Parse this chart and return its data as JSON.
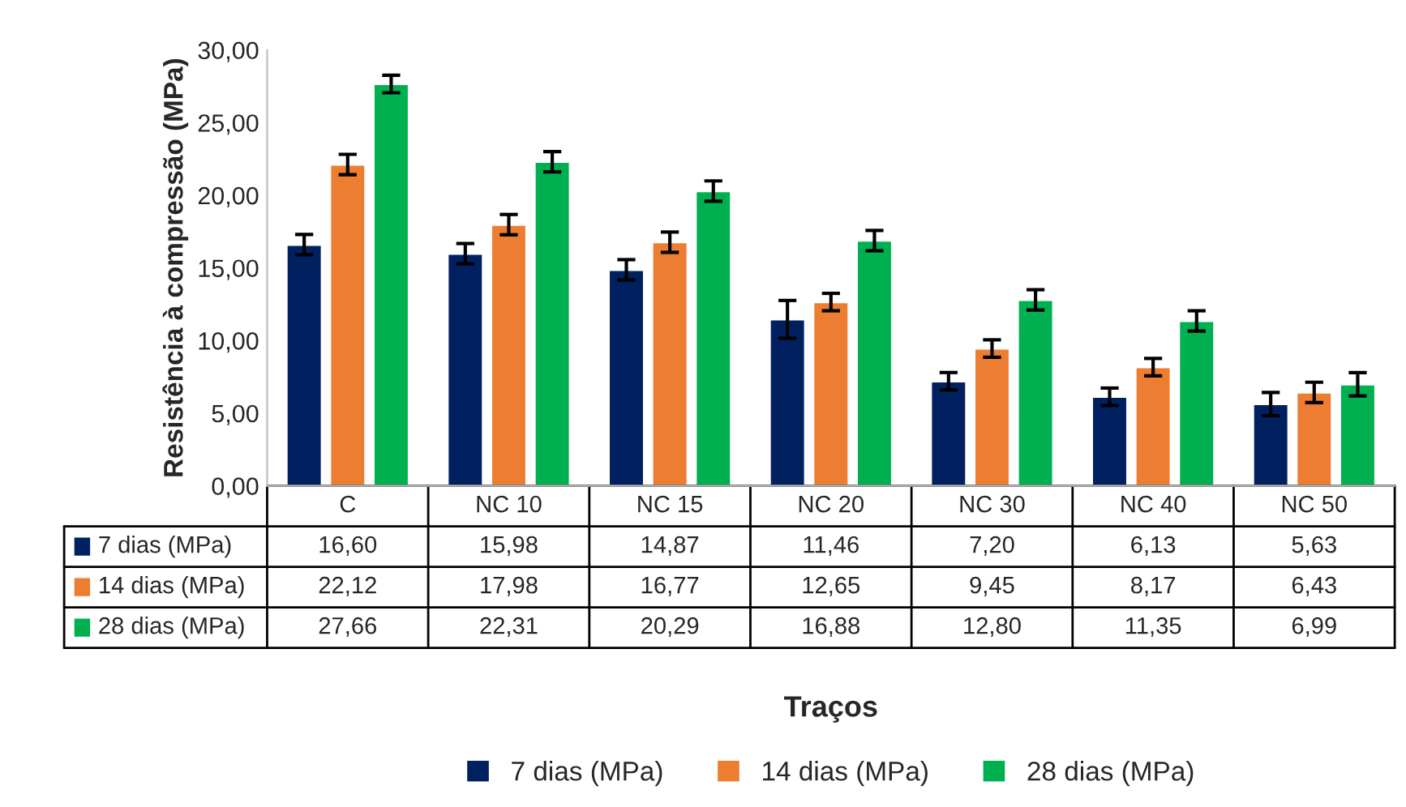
{
  "chart_data": {
    "type": "bar",
    "ylabel": "Resistência à compressão (MPa)",
    "annotations": [
      "Traços"
    ],
    "categories": [
      "C",
      "NC 10",
      "NC 15",
      "NC 20",
      "NC 30",
      "NC 40",
      "NC 50"
    ],
    "series": [
      {
        "name": "7 dias (MPa)",
        "color": "#002060",
        "values": [
          16.6,
          15.98,
          14.87,
          11.46,
          7.2,
          6.13,
          5.63
        ],
        "value_labels": [
          "16,60",
          "15,98",
          "14,87",
          "11,46",
          "7,20",
          "6,13",
          "5,63"
        ],
        "errors": [
          0.7,
          0.7,
          0.7,
          1.3,
          0.6,
          0.6,
          0.8
        ]
      },
      {
        "name": "14 dias (MPa)",
        "color": "#ed7d31",
        "values": [
          22.12,
          17.98,
          16.77,
          12.65,
          9.45,
          8.17,
          6.43
        ],
        "value_labels": [
          "22,12",
          "17,98",
          "16,77",
          "12,65",
          "9,45",
          "8,17",
          "6,43"
        ],
        "errors": [
          0.7,
          0.7,
          0.7,
          0.6,
          0.6,
          0.6,
          0.7
        ]
      },
      {
        "name": "28 dias (MPa)",
        "color": "#00b050",
        "values": [
          27.66,
          22.31,
          20.29,
          16.88,
          12.8,
          11.35,
          6.99
        ],
        "value_labels": [
          "27,66",
          "22,31",
          "20,29",
          "16,88",
          "12,80",
          "11,35",
          "6,99"
        ],
        "errors": [
          0.6,
          0.7,
          0.7,
          0.7,
          0.7,
          0.7,
          0.8
        ]
      }
    ],
    "ylim": [
      0,
      30
    ],
    "yticks": [
      {
        "value": 0,
        "label": "0,00"
      },
      {
        "value": 5,
        "label": "5,00"
      },
      {
        "value": 10,
        "label": "10,00"
      },
      {
        "value": 15,
        "label": "15,00"
      },
      {
        "value": 20,
        "label": "20,00"
      },
      {
        "value": 25,
        "label": "25,00"
      },
      {
        "value": 30,
        "label": "30,00"
      }
    ],
    "grid": false,
    "legend": "bottom"
  }
}
